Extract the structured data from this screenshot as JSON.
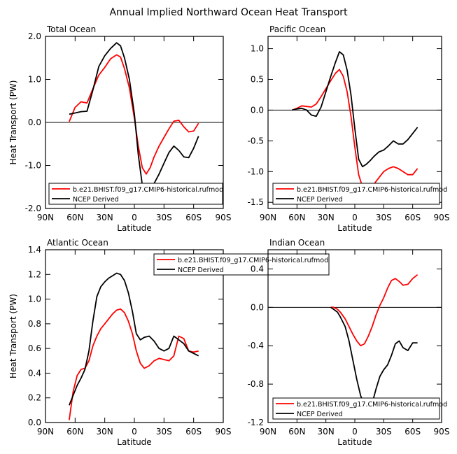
{
  "figure_title": "Annual Implied Northward Ocean Heat Transport",
  "colors": {
    "model": "#ff0000",
    "observed": "#000000",
    "axis": "#000000",
    "background": "#ffffff"
  },
  "chart_data": [
    {
      "type": "line",
      "title": "Total Ocean",
      "xlabel": "Latitude",
      "ylabel": "Heat Transport (PW)",
      "x_axis": "latitude, north positive; plotted from 90N (left) to 90S (right)",
      "xlim": [
        90,
        -90
      ],
      "xticks": [
        90,
        60,
        30,
        0,
        -30,
        -60,
        -90
      ],
      "xtick_labels": [
        "90N",
        "60N",
        "30N",
        "0",
        "30S",
        "60S",
        "90S"
      ],
      "ylim": [
        -2.0,
        2.0
      ],
      "yticks": [
        -2.0,
        -1.0,
        0.0,
        1.0,
        2.0
      ],
      "ytick_labels": [
        "-2.0",
        "-1.0",
        "0.0",
        "1.0",
        "2.0"
      ],
      "zero_line": true,
      "legend_position": "bottom",
      "series": [
        {
          "name": "b.e21.BHIST.f09_g17.CMIP6-historical.rufmod",
          "color": "#ff0000",
          "x": [
            66,
            60,
            54,
            48,
            42,
            36,
            30,
            24,
            18,
            14,
            10,
            5,
            0,
            -4,
            -8,
            -12,
            -16,
            -20,
            -25,
            -30,
            -35,
            -40,
            -45,
            -50,
            -55,
            -60,
            -65
          ],
          "y": [
            0.02,
            0.35,
            0.48,
            0.45,
            0.78,
            1.1,
            1.28,
            1.48,
            1.57,
            1.52,
            1.25,
            0.8,
            0.1,
            -0.55,
            -1.05,
            -1.2,
            -1.05,
            -0.8,
            -0.55,
            -0.35,
            -0.15,
            0.03,
            0.05,
            -0.1,
            -0.22,
            -0.2,
            -0.02
          ]
        },
        {
          "name": "NCEP Derived",
          "color": "#000000",
          "x": [
            66,
            60,
            54,
            48,
            42,
            36,
            30,
            24,
            18,
            14,
            10,
            5,
            0,
            -4,
            -8,
            -12,
            -16,
            -20,
            -25,
            -30,
            -35,
            -40,
            -45,
            -50,
            -55,
            -60,
            -65
          ],
          "y": [
            0.19,
            0.22,
            0.25,
            0.26,
            0.75,
            1.3,
            1.55,
            1.72,
            1.85,
            1.78,
            1.5,
            1.0,
            0.2,
            -0.75,
            -1.45,
            -1.65,
            -1.58,
            -1.42,
            -1.2,
            -0.95,
            -0.7,
            -0.55,
            -0.65,
            -0.8,
            -0.82,
            -0.6,
            -0.32
          ]
        }
      ]
    },
    {
      "type": "line",
      "title": "Pacific Ocean",
      "xlabel": "Latitude",
      "ylabel": "",
      "x_axis": "latitude, north positive; plotted from 90N (left) to 90S (right)",
      "xlim": [
        90,
        -90
      ],
      "xticks": [
        90,
        60,
        30,
        0,
        -30,
        -60,
        -90
      ],
      "xtick_labels": [
        "90N",
        "60N",
        "30N",
        "0",
        "30S",
        "60S",
        "90S"
      ],
      "ylim": [
        -1.6,
        1.2
      ],
      "yticks": [
        -1.5,
        -1.0,
        -0.5,
        0.0,
        0.5,
        1.0
      ],
      "ytick_labels": [
        "-1.5",
        "-1.0",
        "-0.5",
        "0.0",
        "0.5",
        "1.0"
      ],
      "zero_line": true,
      "legend_position": "bottom",
      "series": [
        {
          "name": "b.e21.BHIST.f09_g17.CMIP6-historical.rufmod",
          "color": "#ff0000",
          "x": [
            65,
            60,
            55,
            50,
            45,
            40,
            35,
            30,
            25,
            20,
            16,
            12,
            8,
            4,
            0,
            -4,
            -8,
            -12,
            -16,
            -20,
            -25,
            -30,
            -35,
            -40,
            -45,
            -50,
            -55,
            -60,
            -65
          ],
          "y": [
            0.0,
            0.03,
            0.07,
            0.06,
            0.05,
            0.1,
            0.22,
            0.35,
            0.48,
            0.6,
            0.66,
            0.55,
            0.3,
            -0.1,
            -0.6,
            -1.05,
            -1.25,
            -1.3,
            -1.27,
            -1.2,
            -1.1,
            -1.0,
            -0.95,
            -0.92,
            -0.95,
            -1.0,
            -1.05,
            -1.05,
            -0.95
          ]
        },
        {
          "name": "NCEP Derived",
          "color": "#000000",
          "x": [
            65,
            60,
            55,
            50,
            45,
            40,
            35,
            30,
            25,
            20,
            16,
            12,
            8,
            4,
            0,
            -4,
            -8,
            -12,
            -16,
            -20,
            -25,
            -30,
            -35,
            -40,
            -45,
            -50,
            -55,
            -60,
            -65
          ],
          "y": [
            0.0,
            0.02,
            0.03,
            0.0,
            -0.08,
            -0.1,
            0.05,
            0.3,
            0.55,
            0.78,
            0.95,
            0.9,
            0.65,
            0.25,
            -0.3,
            -0.8,
            -0.92,
            -0.88,
            -0.82,
            -0.75,
            -0.68,
            -0.65,
            -0.58,
            -0.5,
            -0.55,
            -0.55,
            -0.48,
            -0.38,
            -0.28
          ]
        }
      ]
    },
    {
      "type": "line",
      "title": "Atlantic Ocean",
      "xlabel": "Latitude",
      "ylabel": "Heat Transport (PW)",
      "x_axis": "latitude, north positive; plotted from 90N (left) to 90S (right)",
      "xlim": [
        90,
        -90
      ],
      "xticks": [
        90,
        60,
        30,
        0,
        -30,
        -60,
        -90
      ],
      "xtick_labels": [
        "90N",
        "60N",
        "30N",
        "0",
        "30S",
        "60S",
        "90S"
      ],
      "ylim": [
        0.0,
        1.4
      ],
      "yticks": [
        0.0,
        0.2,
        0.4,
        0.6,
        0.8,
        1.0,
        1.2,
        1.4
      ],
      "ytick_labels": [
        "0.0",
        "0.2",
        "0.4",
        "0.6",
        "0.8",
        "1.0",
        "1.2",
        "1.4"
      ],
      "zero_line": false,
      "legend_position": "top",
      "series": [
        {
          "name": "b.e21.BHIST.f09_g17.CMIP6-historical.rufmod",
          "color": "#ff0000",
          "x": [
            66,
            62,
            58,
            54,
            50,
            46,
            42,
            38,
            34,
            30,
            26,
            22,
            18,
            14,
            10,
            6,
            2,
            -2,
            -6,
            -10,
            -15,
            -20,
            -25,
            -30,
            -35,
            -40,
            -45,
            -50,
            -55,
            -60,
            -65
          ],
          "y": [
            0.02,
            0.25,
            0.38,
            0.43,
            0.44,
            0.5,
            0.62,
            0.7,
            0.76,
            0.8,
            0.84,
            0.88,
            0.91,
            0.92,
            0.89,
            0.82,
            0.72,
            0.58,
            0.48,
            0.44,
            0.46,
            0.5,
            0.52,
            0.51,
            0.5,
            0.54,
            0.7,
            0.68,
            0.58,
            0.57,
            0.58
          ]
        },
        {
          "name": "NCEP Derived",
          "color": "#000000",
          "x": [
            66,
            62,
            58,
            54,
            50,
            46,
            42,
            38,
            34,
            30,
            26,
            22,
            18,
            14,
            10,
            6,
            2,
            -2,
            -6,
            -10,
            -15,
            -20,
            -25,
            -30,
            -35,
            -40,
            -45,
            -50,
            -55,
            -60,
            -65
          ],
          "y": [
            0.14,
            0.22,
            0.3,
            0.36,
            0.43,
            0.58,
            0.82,
            1.02,
            1.1,
            1.14,
            1.17,
            1.19,
            1.21,
            1.2,
            1.15,
            1.05,
            0.9,
            0.72,
            0.67,
            0.69,
            0.7,
            0.66,
            0.6,
            0.58,
            0.6,
            0.7,
            0.67,
            0.64,
            0.58,
            0.56,
            0.54
          ]
        }
      ]
    },
    {
      "type": "line",
      "title": "Indian Ocean",
      "xlabel": "Latitude",
      "ylabel": "",
      "x_axis": "latitude, north positive; plotted from 90N (left) to 90S (right)",
      "xlim": [
        90,
        -90
      ],
      "xticks": [
        90,
        60,
        30,
        0,
        -30,
        -60,
        -90
      ],
      "xtick_labels": [
        "90N",
        "60N",
        "30N",
        "0",
        "30S",
        "60S",
        "90S"
      ],
      "ylim": [
        -1.2,
        0.6
      ],
      "yticks": [
        -1.2,
        -0.8,
        -0.4,
        0.0,
        0.4
      ],
      "ytick_labels": [
        "-1.2",
        "-0.8",
        "-0.4",
        "0.0",
        "0.4"
      ],
      "zero_line": true,
      "legend_position": "bottom",
      "series": [
        {
          "name": "b.e21.BHIST.f09_g17.CMIP6-historical.rufmod",
          "color": "#ff0000",
          "x": [
            25,
            22,
            18,
            15,
            10,
            6,
            2,
            -2,
            -6,
            -10,
            -14,
            -18,
            -22,
            -26,
            -30,
            -34,
            -38,
            -42,
            -46,
            -50,
            -55,
            -60,
            -65
          ],
          "y": [
            0.0,
            0.0,
            -0.02,
            -0.05,
            -0.12,
            -0.2,
            -0.28,
            -0.35,
            -0.4,
            -0.38,
            -0.3,
            -0.2,
            -0.08,
            0.02,
            0.1,
            0.2,
            0.28,
            0.3,
            0.27,
            0.23,
            0.24,
            0.3,
            0.34
          ]
        },
        {
          "name": "NCEP Derived",
          "color": "#000000",
          "x": [
            25,
            22,
            18,
            15,
            10,
            6,
            2,
            -2,
            -6,
            -10,
            -14,
            -18,
            -22,
            -26,
            -30,
            -34,
            -38,
            -42,
            -46,
            -50,
            -55,
            -60,
            -65
          ],
          "y": [
            0.0,
            -0.02,
            -0.05,
            -0.1,
            -0.2,
            -0.35,
            -0.55,
            -0.75,
            -0.92,
            -1.02,
            -1.05,
            -1.0,
            -0.85,
            -0.72,
            -0.65,
            -0.6,
            -0.5,
            -0.38,
            -0.35,
            -0.42,
            -0.45,
            -0.37,
            -0.37
          ]
        }
      ]
    }
  ]
}
